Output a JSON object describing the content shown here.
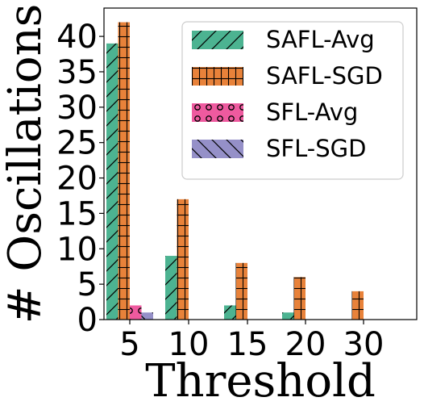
{
  "chart_data": {
    "type": "bar",
    "title": "",
    "xlabel": "Threshold",
    "ylabel": "# Oscillations",
    "categories": [
      "5",
      "10",
      "15",
      "20",
      "30"
    ],
    "ylim": [
      0,
      44
    ],
    "yticks": [
      0,
      5,
      10,
      15,
      20,
      25,
      30,
      35,
      40
    ],
    "grid": false,
    "legend_position": "top-right",
    "series": [
      {
        "name": "SAFL-Avg",
        "values": [
          39,
          9,
          2,
          1,
          0
        ],
        "color": "#4cb391",
        "hatch": "diagonal"
      },
      {
        "name": "SAFL-SGD",
        "values": [
          42,
          17,
          8,
          6,
          4
        ],
        "color": "#e8823a",
        "hatch": "grid"
      },
      {
        "name": "SFL-Avg",
        "values": [
          2,
          0,
          0,
          0,
          0
        ],
        "color": "#ee5a9f",
        "hatch": "circles"
      },
      {
        "name": "SFL-SGD",
        "values": [
          1,
          0,
          0,
          0,
          0
        ],
        "color": "#9590c8",
        "hatch": "backdiagonal"
      }
    ]
  }
}
